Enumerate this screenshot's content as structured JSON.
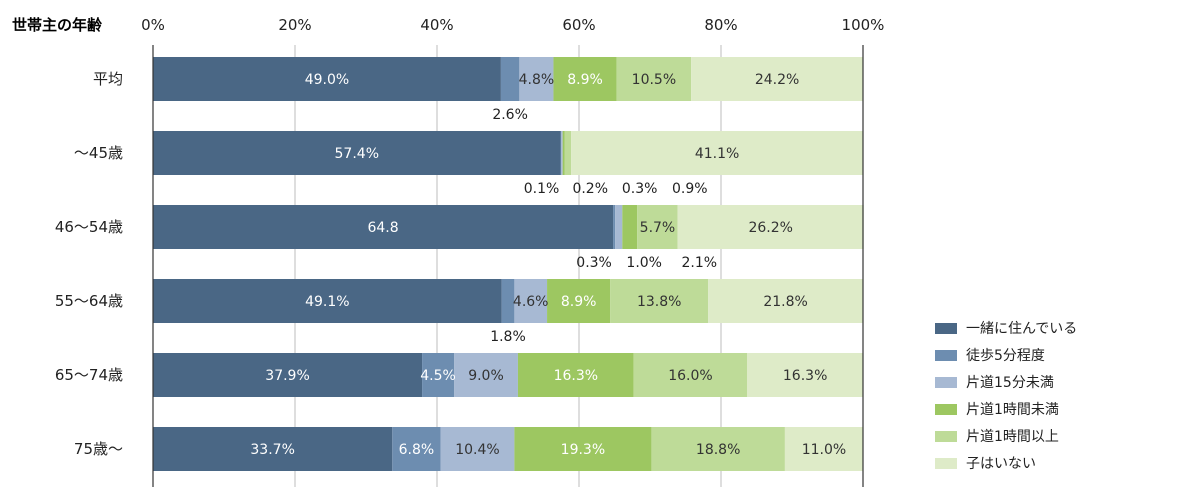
{
  "chart_data": {
    "type": "bar",
    "orientation": "horizontal",
    "stacked": "percent",
    "category_axis_title": "世帯主の年齢",
    "x_tick_labels": [
      "0%",
      "20%",
      "40%",
      "60%",
      "80%",
      "100%"
    ],
    "xlim": [
      0,
      100
    ],
    "grid": true,
    "legend_position": "right-bottom",
    "categories": [
      "平均",
      "〜45歳",
      "46〜54歳",
      "55〜64歳",
      "65〜74歳",
      "75歳〜"
    ],
    "series": [
      {
        "name": "一緒に住んでいる",
        "color": "#4a6785",
        "values": [
          49.0,
          57.4,
          64.8,
          49.1,
          37.9,
          33.7
        ]
      },
      {
        "name": "徒歩5分程度",
        "color": "#6d8db0",
        "values": [
          2.6,
          0.1,
          0.3,
          1.8,
          4.5,
          6.8
        ]
      },
      {
        "name": "片道15分未満",
        "color": "#a7b9d3",
        "values": [
          4.8,
          0.2,
          1.0,
          4.6,
          9.0,
          10.4
        ]
      },
      {
        "name": "片道1時間未満",
        "color": "#9dc761",
        "values": [
          8.9,
          0.3,
          2.1,
          8.9,
          16.3,
          19.3
        ]
      },
      {
        "name": "片道1時間以上",
        "color": "#bedb98",
        "values": [
          10.5,
          0.9,
          5.7,
          13.8,
          16.0,
          18.8
        ]
      },
      {
        "name": "子はいない",
        "color": "#deebc8",
        "values": [
          24.2,
          41.1,
          26.2,
          21.8,
          16.3,
          11.0
        ]
      }
    ],
    "data_labels": [
      {
        "category": 0,
        "series": 0,
        "text": "49.0%",
        "pos": "in"
      },
      {
        "category": 0,
        "series": 1,
        "text": "2.6%",
        "pos": "below"
      },
      {
        "category": 0,
        "series": 2,
        "text": "4.8%",
        "pos": "in"
      },
      {
        "category": 0,
        "series": 3,
        "text": "8.9%",
        "pos": "in"
      },
      {
        "category": 0,
        "series": 4,
        "text": "10.5%",
        "pos": "in"
      },
      {
        "category": 0,
        "series": 5,
        "text": "24.2%",
        "pos": "in"
      },
      {
        "category": 1,
        "series": 0,
        "text": "57.4%",
        "pos": "in"
      },
      {
        "category": 1,
        "series": 1,
        "text": "0.1%",
        "pos": "below",
        "slot": 0
      },
      {
        "category": 1,
        "series": 2,
        "text": "0.2%",
        "pos": "below",
        "slot": 1
      },
      {
        "category": 1,
        "series": 3,
        "text": "0.3%",
        "pos": "below",
        "slot": 2
      },
      {
        "category": 1,
        "series": 4,
        "text": "0.9%",
        "pos": "below",
        "slot": 3
      },
      {
        "category": 1,
        "series": 5,
        "text": "41.1%",
        "pos": "in"
      },
      {
        "category": 2,
        "series": 0,
        "text": "64.8",
        "pos": "in"
      },
      {
        "category": 2,
        "series": 1,
        "text": "0.3%",
        "pos": "below",
        "slot": 0
      },
      {
        "category": 2,
        "series": 2,
        "text": "1.0%",
        "pos": "below",
        "slot": 1
      },
      {
        "category": 2,
        "series": 3,
        "text": "2.1%",
        "pos": "below",
        "slot": 2
      },
      {
        "category": 2,
        "series": 4,
        "text": "5.7%",
        "pos": "in"
      },
      {
        "category": 2,
        "series": 5,
        "text": "26.2%",
        "pos": "in"
      },
      {
        "category": 3,
        "series": 0,
        "text": "49.1%",
        "pos": "in"
      },
      {
        "category": 3,
        "series": 1,
        "text": "1.8%",
        "pos": "below"
      },
      {
        "category": 3,
        "series": 2,
        "text": "4.6%",
        "pos": "in"
      },
      {
        "category": 3,
        "series": 3,
        "text": "8.9%",
        "pos": "in"
      },
      {
        "category": 3,
        "series": 4,
        "text": "13.8%",
        "pos": "in"
      },
      {
        "category": 3,
        "series": 5,
        "text": "21.8%",
        "pos": "in"
      },
      {
        "category": 4,
        "series": 0,
        "text": "37.9%",
        "pos": "in"
      },
      {
        "category": 4,
        "series": 1,
        "text": "4.5%",
        "pos": "in"
      },
      {
        "category": 4,
        "series": 2,
        "text": "9.0%",
        "pos": "in"
      },
      {
        "category": 4,
        "series": 3,
        "text": "16.3%",
        "pos": "in"
      },
      {
        "category": 4,
        "series": 4,
        "text": "16.0%",
        "pos": "in"
      },
      {
        "category": 4,
        "series": 5,
        "text": "16.3%",
        "pos": "in"
      },
      {
        "category": 5,
        "series": 0,
        "text": "33.7%",
        "pos": "in"
      },
      {
        "category": 5,
        "series": 1,
        "text": "6.8%",
        "pos": "in"
      },
      {
        "category": 5,
        "series": 2,
        "text": "10.4%",
        "pos": "in"
      },
      {
        "category": 5,
        "series": 3,
        "text": "19.3%",
        "pos": "in"
      },
      {
        "category": 5,
        "series": 4,
        "text": "18.8%",
        "pos": "in"
      },
      {
        "category": 5,
        "series": 5,
        "text": "11.0%",
        "pos": "in"
      }
    ]
  }
}
